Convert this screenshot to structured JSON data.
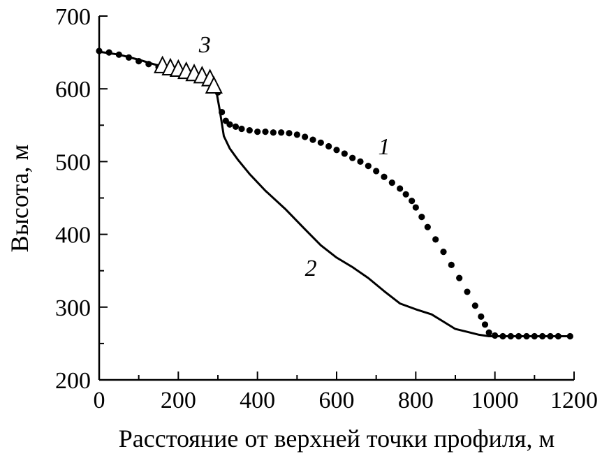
{
  "chart_data": {
    "type": "line",
    "xlabel": "Расстояние от верхней точки профиля, м",
    "ylabel": "Высота, м",
    "xlim": [
      0,
      1200
    ],
    "ylim": [
      200,
      700
    ],
    "xticks": [
      "0",
      "200",
      "400",
      "600",
      "800",
      "1000",
      "1200"
    ],
    "yticks": [
      "200",
      "300",
      "400",
      "500",
      "600",
      "700"
    ],
    "grid": false,
    "legend": "none",
    "series": [
      {
        "label": "1",
        "style": "dotted",
        "x": [
          0,
          25,
          50,
          75,
          100,
          125,
          150,
          175,
          200,
          225,
          250,
          275,
          290,
          300,
          310,
          320,
          330,
          345,
          360,
          380,
          400,
          420,
          440,
          460,
          480,
          500,
          520,
          540,
          560,
          580,
          600,
          620,
          640,
          660,
          680,
          700,
          720,
          740,
          760,
          775,
          790,
          800,
          815,
          830,
          850,
          870,
          890,
          910,
          930,
          950,
          965,
          975,
          985,
          1000,
          1020,
          1040,
          1060,
          1080,
          1100,
          1120,
          1140,
          1160,
          1190
        ],
        "y": [
          652,
          650,
          647,
          643,
          638,
          634,
          630,
          627,
          624,
          620,
          616,
          612,
          607,
          595,
          568,
          556,
          551,
          548,
          545,
          543,
          541,
          541,
          540,
          540,
          539,
          537,
          534,
          530,
          526,
          521,
          516,
          511,
          505,
          500,
          494,
          487,
          479,
          471,
          463,
          455,
          446,
          437,
          424,
          410,
          393,
          376,
          358,
          340,
          321,
          302,
          287,
          276,
          265,
          261,
          260,
          260,
          260,
          260,
          260,
          260,
          260,
          260,
          260
        ]
      },
      {
        "label": "2",
        "style": "solid",
        "x": [
          0,
          50,
          100,
          150,
          200,
          250,
          280,
          295,
          305,
          315,
          330,
          350,
          380,
          420,
          470,
          520,
          560,
          600,
          640,
          680,
          720,
          760,
          800,
          840,
          870,
          900,
          930,
          960,
          985,
          1000,
          1050,
          1100,
          1150,
          1190
        ],
        "y": [
          651,
          647,
          640,
          632,
          625,
          618,
          612,
          600,
          570,
          535,
          518,
          503,
          483,
          460,
          435,
          407,
          385,
          368,
          355,
          340,
          322,
          305,
          297,
          290,
          280,
          270,
          266,
          262,
          260,
          260,
          260,
          260,
          260,
          260
        ]
      },
      {
        "label": "3",
        "style": "triangles",
        "x": [
          160,
          180,
          200,
          220,
          240,
          260,
          280,
          290
        ],
        "y": [
          633,
          630,
          628,
          625,
          622,
          619,
          615,
          605
        ]
      }
    ],
    "annotations": [
      {
        "text": "1",
        "x": 720,
        "y": 510
      },
      {
        "text": "2",
        "x": 535,
        "y": 343
      },
      {
        "text": "3",
        "x": 267,
        "y": 650
      }
    ]
  }
}
